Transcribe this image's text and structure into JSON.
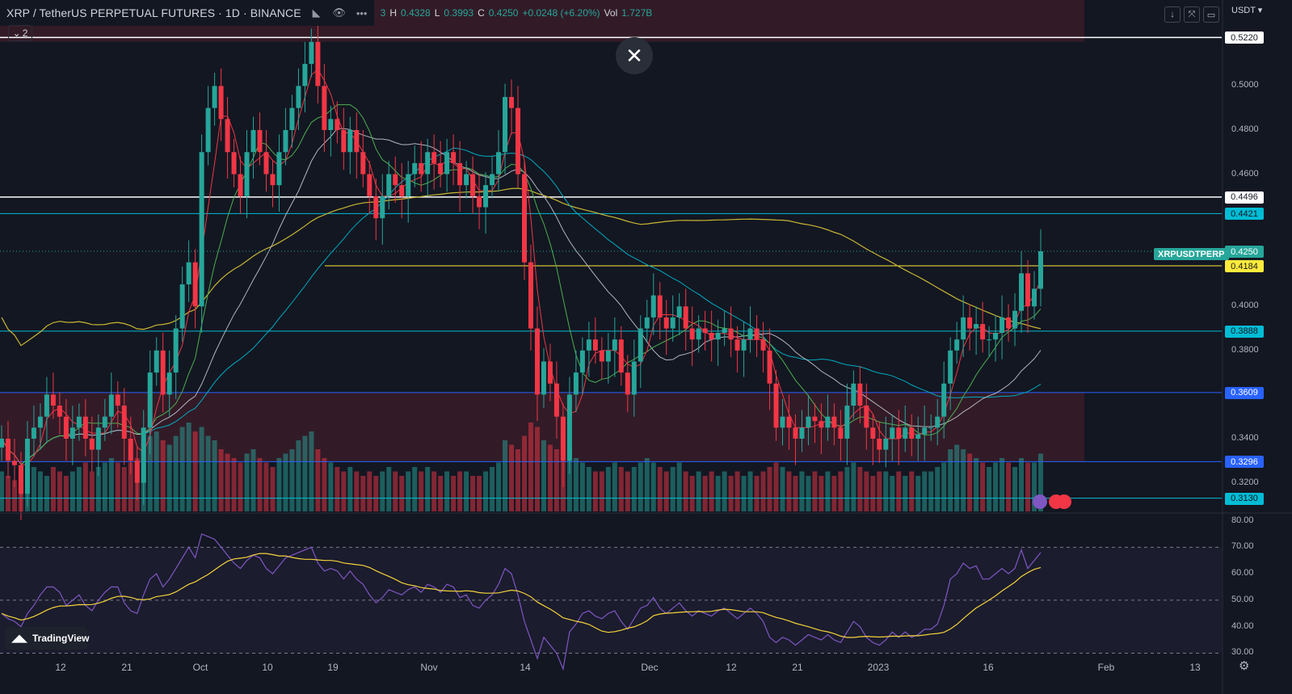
{
  "header": {
    "symbol_title": "XRP / TetherUS PERPETUAL FUTURES · 1D · BINANCE",
    "ohlc": {
      "o_tail": "3",
      "h_label": "H",
      "h": "0.4328",
      "l_label": "L",
      "l": "0.3993",
      "c_label": "C",
      "c": "0.4250",
      "change": "+0.0248 (+6.20%)",
      "vol_label": "Vol",
      "vol": "1.727B"
    },
    "collapse_label": "2",
    "icons": [
      "flag-icon",
      "eye-icon",
      "more-icon"
    ]
  },
  "toolbar": {
    "currency": "USDT"
  },
  "symbol_tag": "XRPUSDTPERP",
  "price_axis": {
    "ticks": [
      "0.5000",
      "0.4800",
      "0.4600",
      "0.4000",
      "0.3800",
      "0.3400",
      "0.3200"
    ],
    "labels": [
      {
        "text": "0.5220",
        "bg": "#ffffff",
        "fg": "#131722"
      },
      {
        "text": "0.4496",
        "bg": "#ffffff",
        "fg": "#131722"
      },
      {
        "text": "0.4421",
        "bg": "#00bcd4",
        "fg": "#131722"
      },
      {
        "text": "0.4250",
        "bg": "#26a69a",
        "fg": "#ffffff"
      },
      {
        "text": "0.4184",
        "bg": "#ffeb3b",
        "fg": "#131722"
      },
      {
        "text": "0.3888",
        "bg": "#00bcd4",
        "fg": "#131722"
      },
      {
        "text": "0.3609",
        "bg": "#2962ff",
        "fg": "#ffffff"
      },
      {
        "text": "0.3296",
        "bg": "#2962ff",
        "fg": "#ffffff"
      },
      {
        "text": "0.3130",
        "bg": "#00bcd4",
        "fg": "#131722"
      }
    ]
  },
  "rsi_axis": {
    "ticks": [
      "80.00",
      "70.00",
      "60.00",
      "50.00",
      "40.00",
      "30.00"
    ]
  },
  "time_axis": {
    "ticks": [
      "12",
      "21",
      "Oct",
      "10",
      "19",
      "Nov",
      "14",
      "Dec",
      "12",
      "21",
      "2023",
      "16",
      "Feb",
      "13"
    ]
  },
  "branding": {
    "logo_text": "TradingView"
  },
  "colors": {
    "up": "#26a69a",
    "down": "#f23645",
    "bg": "#131722"
  },
  "chart_data": {
    "type": "candlestick",
    "price_ylim": [
      0.307,
      0.539
    ],
    "rsi_ylim": [
      28,
      82
    ],
    "rsi_levels": [
      70,
      50,
      30
    ],
    "horizontal_lines": [
      {
        "price": 0.522,
        "color": "#ffffff"
      },
      {
        "price": 0.4496,
        "color": "#ffffff"
      },
      {
        "price": 0.4421,
        "color": "#00bcd4"
      },
      {
        "price": 0.4184,
        "color": "#ffeb3b"
      },
      {
        "price": 0.3888,
        "color": "#00bcd4"
      },
      {
        "price": 0.3609,
        "color": "#2962ff"
      },
      {
        "price": 0.3296,
        "color": "#2962ff"
      },
      {
        "price": 0.313,
        "color": "#00bcd4"
      }
    ],
    "zones": [
      {
        "top": 0.539,
        "bottom": 0.52,
        "color": "#f23645"
      },
      {
        "top": 0.3609,
        "bottom": 0.3296,
        "color": "#f23645"
      }
    ],
    "close": [
      0.34,
      0.33,
      0.328,
      0.315,
      0.34,
      0.345,
      0.35,
      0.36,
      0.355,
      0.35,
      0.34,
      0.345,
      0.35,
      0.34,
      0.335,
      0.345,
      0.35,
      0.36,
      0.355,
      0.34,
      0.33,
      0.32,
      0.345,
      0.37,
      0.38,
      0.36,
      0.37,
      0.39,
      0.41,
      0.42,
      0.4,
      0.47,
      0.49,
      0.5,
      0.485,
      0.47,
      0.46,
      0.45,
      0.47,
      0.48,
      0.47,
      0.46,
      0.455,
      0.47,
      0.48,
      0.49,
      0.5,
      0.51,
      0.52,
      0.5,
      0.48,
      0.485,
      0.48,
      0.47,
      0.48,
      0.47,
      0.46,
      0.45,
      0.44,
      0.45,
      0.46,
      0.455,
      0.45,
      0.46,
      0.465,
      0.46,
      0.47,
      0.465,
      0.46,
      0.47,
      0.465,
      0.455,
      0.46,
      0.45,
      0.445,
      0.455,
      0.46,
      0.47,
      0.495,
      0.49,
      0.46,
      0.42,
      0.39,
      0.36,
      0.375,
      0.365,
      0.35,
      0.33,
      0.36,
      0.37,
      0.38,
      0.385,
      0.38,
      0.375,
      0.38,
      0.385,
      0.37,
      0.36,
      0.375,
      0.39,
      0.395,
      0.405,
      0.395,
      0.39,
      0.395,
      0.4,
      0.39,
      0.385,
      0.39,
      0.388,
      0.385,
      0.388,
      0.39,
      0.385,
      0.38,
      0.385,
      0.39,
      0.385,
      0.38,
      0.365,
      0.345,
      0.35,
      0.345,
      0.34,
      0.345,
      0.35,
      0.348,
      0.345,
      0.35,
      0.345,
      0.34,
      0.355,
      0.365,
      0.355,
      0.345,
      0.34,
      0.335,
      0.34,
      0.345,
      0.34,
      0.345,
      0.34,
      0.342,
      0.345,
      0.345,
      0.35,
      0.365,
      0.38,
      0.385,
      0.395,
      0.39,
      0.392,
      0.385,
      0.385,
      0.388,
      0.395,
      0.39,
      0.398,
      0.415,
      0.4,
      0.408,
      0.425
    ],
    "rsi": [
      45,
      43,
      42,
      40,
      45,
      48,
      52,
      55,
      55,
      53,
      48,
      50,
      52,
      48,
      46,
      50,
      53,
      55,
      55,
      49,
      46,
      45,
      52,
      58,
      60,
      55,
      58,
      62,
      66,
      70,
      66,
      75,
      74,
      73,
      70,
      67,
      64,
      62,
      65,
      67,
      66,
      62,
      60,
      63,
      66,
      67,
      68,
      69,
      70,
      64,
      61,
      62,
      61,
      58,
      61,
      58,
      56,
      52,
      49,
      51,
      54,
      53,
      52,
      54,
      55,
      53,
      56,
      55,
      53,
      56,
      55,
      51,
      52,
      48,
      47,
      50,
      52,
      56,
      62,
      60,
      52,
      42,
      35,
      28,
      36,
      33,
      30,
      24,
      38,
      41,
      45,
      46,
      44,
      43,
      45,
      46,
      42,
      39,
      43,
      47,
      48,
      51,
      47,
      45,
      47,
      49,
      46,
      44,
      46,
      45,
      44,
      46,
      47,
      45,
      43,
      45,
      47,
      45,
      42,
      36,
      34,
      36,
      35,
      33,
      35,
      37,
      36,
      35,
      37,
      35,
      34,
      38,
      42,
      40,
      36,
      34,
      33,
      35,
      38,
      36,
      38,
      36,
      37,
      39,
      39,
      41,
      48,
      58,
      60,
      64,
      62,
      63,
      58,
      58,
      60,
      62,
      60,
      62,
      69,
      62,
      65,
      68
    ],
    "volume": [
      0.45,
      0.4,
      0.35,
      0.4,
      0.55,
      0.5,
      0.45,
      0.4,
      0.5,
      0.45,
      0.4,
      0.45,
      0.5,
      0.55,
      0.45,
      0.5,
      0.55,
      0.6,
      0.55,
      0.5,
      0.55,
      0.6,
      0.7,
      0.85,
      0.9,
      0.8,
      0.75,
      0.85,
      0.95,
      1.0,
      0.9,
      0.95,
      0.85,
      0.8,
      0.7,
      0.65,
      0.6,
      0.55,
      0.65,
      0.7,
      0.6,
      0.55,
      0.5,
      0.6,
      0.65,
      0.7,
      0.8,
      0.85,
      0.9,
      0.7,
      0.6,
      0.55,
      0.5,
      0.45,
      0.5,
      0.45,
      0.4,
      0.45,
      0.4,
      0.45,
      0.5,
      0.45,
      0.4,
      0.45,
      0.5,
      0.45,
      0.5,
      0.45,
      0.4,
      0.45,
      0.4,
      0.45,
      0.45,
      0.4,
      0.4,
      0.45,
      0.5,
      0.55,
      0.8,
      0.75,
      0.7,
      0.85,
      1.0,
      0.95,
      0.8,
      0.75,
      0.7,
      0.9,
      0.7,
      0.6,
      0.55,
      0.5,
      0.45,
      0.45,
      0.5,
      0.55,
      0.5,
      0.45,
      0.5,
      0.55,
      0.6,
      0.55,
      0.5,
      0.45,
      0.5,
      0.55,
      0.45,
      0.4,
      0.45,
      0.4,
      0.45,
      0.4,
      0.45,
      0.4,
      0.45,
      0.4,
      0.45,
      0.4,
      0.45,
      0.5,
      0.55,
      0.5,
      0.45,
      0.4,
      0.45,
      0.4,
      0.45,
      0.4,
      0.45,
      0.4,
      0.45,
      0.5,
      0.55,
      0.5,
      0.45,
      0.4,
      0.45,
      0.45,
      0.4,
      0.45,
      0.4,
      0.45,
      0.4,
      0.45,
      0.45,
      0.5,
      0.55,
      0.7,
      0.75,
      0.7,
      0.65,
      0.6,
      0.55,
      0.5,
      0.55,
      0.6,
      0.55,
      0.5,
      0.6,
      0.55,
      0.55,
      0.65
    ]
  }
}
